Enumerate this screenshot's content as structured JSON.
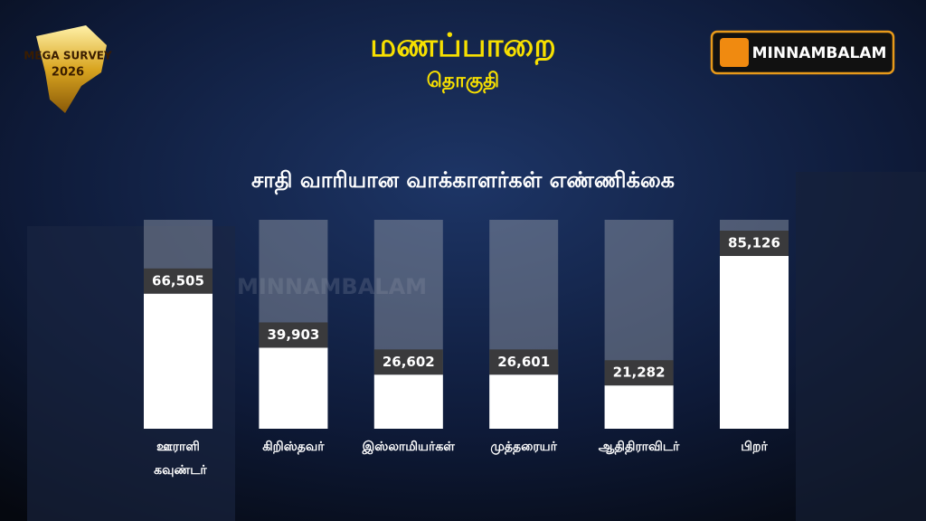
{
  "header": {
    "title": "மணப்பாறை",
    "subtitle": "தொகுதி",
    "logo_line1": "MEGA SURVEY",
    "logo_line2": "2026",
    "brand": "MINNAMBALAM",
    "watermark": "MINNAMBALAM"
  },
  "chart_data": {
    "type": "bar",
    "title": "சாதி வாரியான வாக்காளர்கள்  எண்ணிக்கை",
    "categories": [
      "ஊராளி கவுண்டர்",
      "கிறிஸ்தவர்",
      "இஸ்லாமியர்கள்",
      "முத்தரையர்",
      "ஆதிதிராவிடர்",
      "பிறர்"
    ],
    "values": [
      66505,
      39903,
      26602,
      26601,
      21282,
      85126
    ],
    "value_labels": [
      "66,505",
      "39,903",
      "26,602",
      "26,601",
      "21,282",
      "85,126"
    ],
    "color": "#ffffff"
  }
}
